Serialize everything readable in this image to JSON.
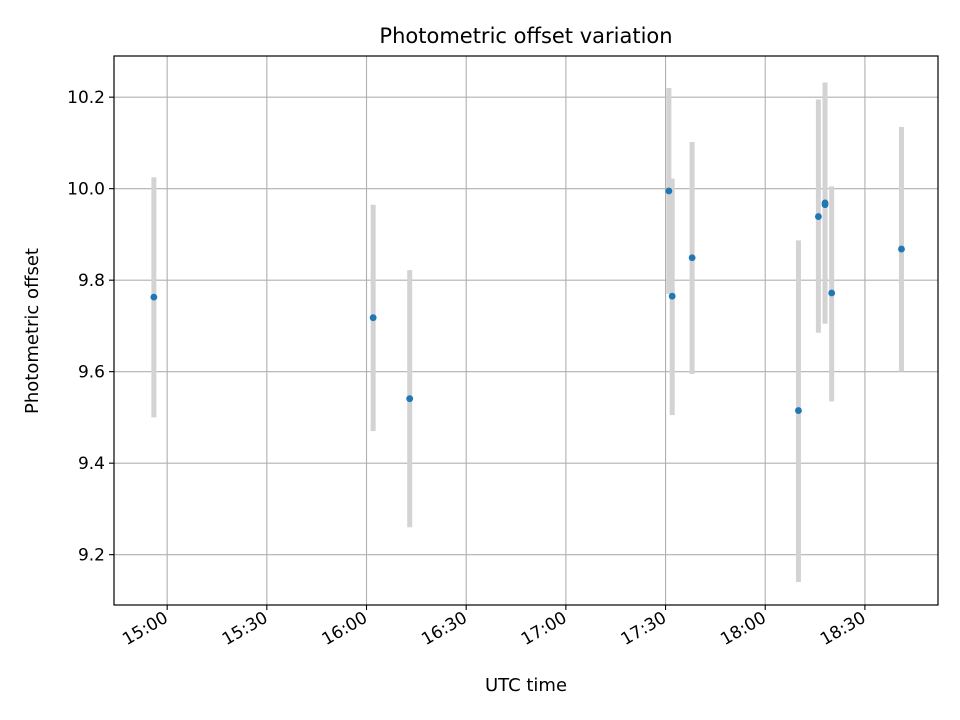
{
  "chart_data": {
    "type": "scatter",
    "title": "Photometric offset variation",
    "xlabel": "UTC time",
    "ylabel": "Photometric offset",
    "x_ticks": [
      "15:00",
      "15:30",
      "16:00",
      "16:30",
      "17:00",
      "17:30",
      "18:00",
      "18:30"
    ],
    "xlim": [
      "14:44",
      "18:52"
    ],
    "y_ticks": [
      9.2,
      9.4,
      9.6,
      9.8,
      10.0,
      10.2
    ],
    "y_tick_labels": [
      "9.2",
      "9.4",
      "9.6",
      "9.8",
      "10.0",
      "10.2"
    ],
    "ylim": [
      9.09,
      10.29
    ],
    "grid": true,
    "points": [
      {
        "time": "14:56",
        "y": 9.763,
        "ylow": 9.5,
        "yhigh": 10.025
      },
      {
        "time": "16:02",
        "y": 9.718,
        "ylow": 9.47,
        "yhigh": 9.965
      },
      {
        "time": "16:13",
        "y": 9.541,
        "ylow": 9.26,
        "yhigh": 9.822
      },
      {
        "time": "17:31",
        "y": 9.995,
        "ylow": 9.77,
        "yhigh": 10.22
      },
      {
        "time": "17:32",
        "y": 9.765,
        "ylow": 9.505,
        "yhigh": 10.022
      },
      {
        "time": "17:38",
        "y": 9.849,
        "ylow": 9.595,
        "yhigh": 10.102
      },
      {
        "time": "18:10",
        "y": 9.515,
        "ylow": 9.14,
        "yhigh": 9.887
      },
      {
        "time": "18:16",
        "y": 9.939,
        "ylow": 9.685,
        "yhigh": 10.195
      },
      {
        "time": "18:18",
        "y": 9.969,
        "ylow": 9.705,
        "yhigh": 10.232
      },
      {
        "time": "18:18",
        "y": 9.965,
        "ylow": 9.705,
        "yhigh": 10.232
      },
      {
        "time": "18:20",
        "y": 9.772,
        "ylow": 9.535,
        "yhigh": 10.005
      },
      {
        "time": "18:41",
        "y": 9.868,
        "ylow": 9.6,
        "yhigh": 10.135
      }
    ],
    "colors": {
      "marker": "#1f77b4",
      "errorbar": "#d3d3d3",
      "grid": "#b0b0b0"
    }
  }
}
